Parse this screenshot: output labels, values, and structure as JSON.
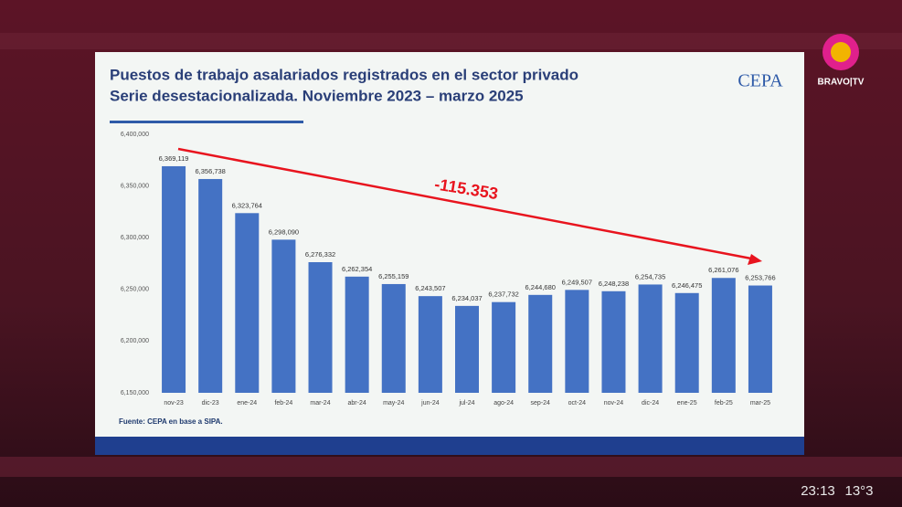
{
  "chart_data": {
    "type": "bar",
    "title": "Puestos de trabajo asalariados registrados en el sector privado",
    "subtitle": "Serie desestacionalizada. Noviembre 2023 – marzo 2025",
    "categories": [
      "nov-23",
      "dic-23",
      "ene-24",
      "feb-24",
      "mar-24",
      "abr-24",
      "may-24",
      "jun-24",
      "jul-24",
      "ago-24",
      "sep-24",
      "oct-24",
      "nov-24",
      "dic-24",
      "ene-25",
      "feb-25",
      "mar-25"
    ],
    "values": [
      6369119,
      6356738,
      6323764,
      6298090,
      6276332,
      6262354,
      6255159,
      6243507,
      6234037,
      6237732,
      6244680,
      6249507,
      6248238,
      6254735,
      6246475,
      6261076,
      6253766
    ],
    "value_labels": [
      "6,369,119",
      "6,356,738",
      "6,323,764",
      "6,298,090",
      "6,276,332",
      "6,262,354",
      "6,255,159",
      "6,243,507",
      "6,234,037",
      "6,237,732",
      "6,244,680",
      "6,249,507",
      "6,248,238",
      "6,254,735",
      "6,246,475",
      "6,261,076",
      "6,253,766"
    ],
    "color": "#4472c4",
    "ylim": [
      6150000,
      6400000
    ],
    "yticks": [
      {
        "value": 6150000,
        "label": "6,150,000"
      },
      {
        "value": 6200000,
        "label": "6,200,000"
      },
      {
        "value": 6250000,
        "label": "6,250,000"
      },
      {
        "value": 6300000,
        "label": "6,300,000"
      },
      {
        "value": 6350000,
        "label": "6,350,000"
      },
      {
        "value": 6400000,
        "label": "6,400,000"
      }
    ],
    "grid": false,
    "annotation": "-115.353",
    "source": "Fuente: CEPA en base a SIPA."
  },
  "logo": "CEPA",
  "channel": "BRAVO|TV",
  "clock": "23:13",
  "temperature": "13°3"
}
